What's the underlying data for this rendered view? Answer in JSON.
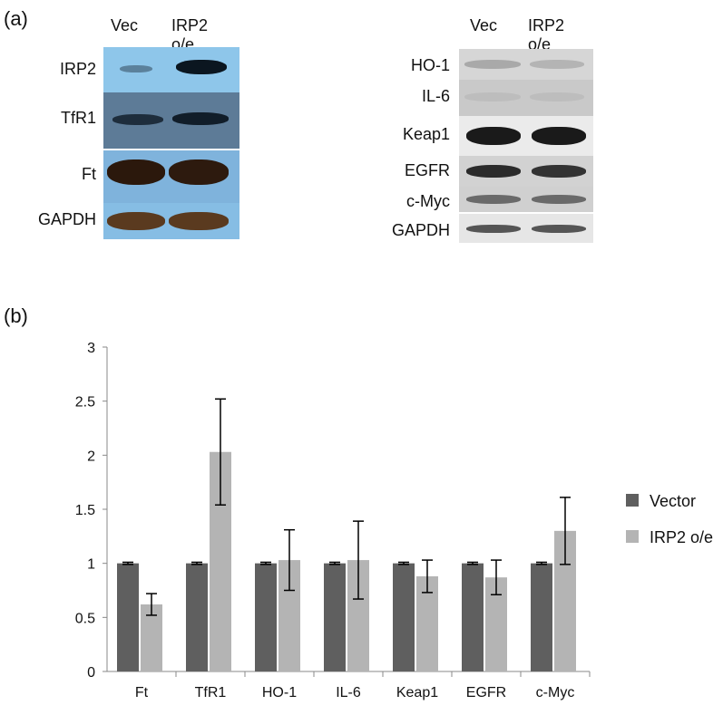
{
  "panel_a": {
    "label": "(a)",
    "blot_left": {
      "lanes": [
        "Vec",
        "IRP2 o/e"
      ],
      "bands": [
        "IRP2",
        "TfR1",
        "Ft",
        "GAPDH"
      ]
    },
    "blot_right": {
      "lanes": [
        "Vec",
        "IRP2 o/e"
      ],
      "bands": [
        "HO-1",
        "IL-6",
        "Keap1",
        "EGFR",
        "c-Myc",
        "GAPDH"
      ]
    }
  },
  "panel_b": {
    "label": "(b)"
  },
  "chart_data": {
    "type": "bar",
    "categories": [
      "Ft",
      "TfR1",
      "HO-1",
      "IL-6",
      "Keap1",
      "EGFR",
      "c-Myc"
    ],
    "series": [
      {
        "name": "Vector",
        "values": [
          1,
          1,
          1,
          1,
          1,
          1,
          1
        ],
        "errors": [
          0.01,
          0.01,
          0.01,
          0.01,
          0.01,
          0.01,
          0.01
        ],
        "color": "#5f5f5f"
      },
      {
        "name": "IRP2 o/e",
        "values": [
          0.62,
          2.03,
          1.03,
          1.03,
          0.88,
          0.87,
          1.3
        ],
        "errors": [
          0.1,
          0.49,
          0.28,
          0.36,
          0.15,
          0.16,
          0.31
        ],
        "color": "#b4b4b4"
      }
    ],
    "ylim": [
      0,
      3
    ],
    "yticks": [
      "0",
      "0.5",
      "1",
      "1.5",
      "2",
      "2.5",
      "3"
    ],
    "grid": false,
    "legend_position": "right"
  }
}
